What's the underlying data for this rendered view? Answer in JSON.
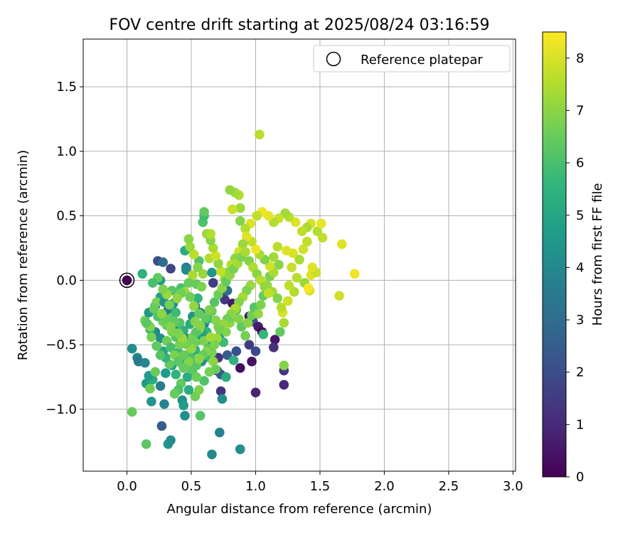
{
  "chart_data": {
    "type": "scatter",
    "title": "FOV centre drift starting at 2025/08/24 03:16:59",
    "xlabel": "Angular distance from reference (arcmin)",
    "ylabel": "Rotation from reference (arcmin)",
    "xlim": [
      -0.34,
      3.02
    ],
    "ylim": [
      -1.48,
      1.87
    ],
    "xticks": [
      0.0,
      0.5,
      1.0,
      1.5,
      2.0,
      2.5,
      3.0
    ],
    "xtick_labels": [
      "0.0",
      "0.5",
      "1.0",
      "1.5",
      "2.0",
      "2.5",
      "3.0"
    ],
    "yticks": [
      -1.0,
      -0.5,
      0.0,
      0.5,
      1.0,
      1.5
    ],
    "ytick_labels": [
      "−1.0",
      "−0.5",
      "0.0",
      "0.5",
      "1.0",
      "1.5"
    ],
    "grid": true,
    "legend": {
      "placement": "top-right",
      "entries": [
        "Reference platepar"
      ]
    },
    "reference_point": {
      "x": 0.0,
      "y": 0.0,
      "hours": 0.0
    },
    "colorbar": {
      "label": "Hours from first FF file",
      "range": [
        0,
        8.5
      ],
      "ticks": [
        0,
        1,
        2,
        3,
        4,
        5,
        6,
        7,
        8
      ],
      "tick_labels": [
        "0",
        "1",
        "2",
        "3",
        "4",
        "5",
        "6",
        "7",
        "8"
      ],
      "colormap": "viridis"
    },
    "points": [
      [
        0.0,
        0.0,
        0.1
      ],
      [
        0.12,
        0.05,
        5.4
      ],
      [
        0.24,
        0.15,
        2.0
      ],
      [
        0.28,
        0.14,
        3.0
      ],
      [
        0.34,
        0.09,
        1.7
      ],
      [
        0.45,
        0.23,
        5.2
      ],
      [
        0.46,
        0.1,
        3.6
      ],
      [
        0.46,
        0.08,
        4.0
      ],
      [
        0.26,
        0.0,
        4.6
      ],
      [
        0.24,
        0.02,
        6.4
      ],
      [
        0.2,
        -0.02,
        6.0
      ],
      [
        0.35,
        -0.08,
        6.2
      ],
      [
        0.42,
        -0.06,
        6.0
      ],
      [
        0.54,
        -0.03,
        6.5
      ],
      [
        0.58,
        -0.05,
        6.8
      ],
      [
        0.56,
        0.15,
        6.1
      ],
      [
        0.59,
        0.05,
        7.2
      ],
      [
        0.64,
        0.17,
        7.5
      ],
      [
        0.66,
        0.06,
        4.5
      ],
      [
        0.67,
        -0.02,
        1.6
      ],
      [
        0.72,
        -0.11,
        0.7
      ],
      [
        0.78,
        -0.08,
        3.0
      ],
      [
        0.76,
        -0.15,
        1.4
      ],
      [
        0.82,
        -0.18,
        0.6
      ],
      [
        0.95,
        -0.28,
        0.4
      ],
      [
        0.98,
        -0.32,
        2.3
      ],
      [
        1.02,
        -0.36,
        0.6
      ],
      [
        1.05,
        -0.4,
        0.2
      ],
      [
        1.06,
        -0.42,
        5.6
      ],
      [
        0.95,
        -0.5,
        1.5
      ],
      [
        0.85,
        -0.55,
        2.1
      ],
      [
        0.78,
        -0.58,
        2.5
      ],
      [
        0.71,
        -0.6,
        1.3
      ],
      [
        0.7,
        -0.7,
        0.8
      ],
      [
        0.73,
        -0.73,
        2.4
      ],
      [
        0.77,
        -0.75,
        5.2
      ],
      [
        0.73,
        -0.86,
        1.3
      ],
      [
        0.74,
        -0.92,
        4.2
      ],
      [
        0.72,
        -1.18,
        3.8
      ],
      [
        0.66,
        -1.35,
        4.0
      ],
      [
        0.88,
        -1.31,
        3.6
      ],
      [
        0.88,
        -1.31,
        4.3
      ],
      [
        0.83,
        -0.62,
        5.4
      ],
      [
        0.88,
        -0.68,
        0.3
      ],
      [
        0.97,
        -0.63,
        0.4
      ],
      [
        1.0,
        -0.87,
        0.9
      ],
      [
        1.0,
        -0.55,
        1.9
      ],
      [
        1.15,
        -0.46,
        0.5
      ],
      [
        1.14,
        -0.52,
        1.2
      ],
      [
        1.22,
        -0.7,
        1.3
      ],
      [
        1.22,
        -0.81,
        1.0
      ],
      [
        1.22,
        -0.66,
        6.9
      ],
      [
        1.19,
        -0.4,
        6.4
      ],
      [
        1.22,
        -0.33,
        7.4
      ],
      [
        1.21,
        -0.25,
        8.0
      ],
      [
        0.04,
        -0.53,
        4.1
      ],
      [
        0.08,
        -0.6,
        3.9
      ],
      [
        0.09,
        -0.63,
        3.4
      ],
      [
        0.14,
        -0.64,
        3.9
      ],
      [
        0.15,
        -0.8,
        4.7
      ],
      [
        0.2,
        -0.77,
        5.3
      ],
      [
        0.19,
        -0.94,
        4.4
      ],
      [
        0.17,
        -0.74,
        4.6
      ],
      [
        0.26,
        -0.82,
        3.6
      ],
      [
        0.29,
        -0.96,
        3.8
      ],
      [
        0.27,
        -1.13,
        2.5
      ],
      [
        0.15,
        -1.27,
        6.3
      ],
      [
        0.32,
        -1.27,
        4.4
      ],
      [
        0.34,
        -1.24,
        4.2
      ],
      [
        0.04,
        -1.02,
        6.5
      ],
      [
        0.18,
        -0.84,
        6.6
      ],
      [
        0.22,
        -0.71,
        6.5
      ],
      [
        0.3,
        -0.72,
        4.6
      ],
      [
        0.35,
        -0.66,
        4.9
      ],
      [
        0.38,
        -0.73,
        5.5
      ],
      [
        0.42,
        -0.8,
        6.4
      ],
      [
        0.43,
        -0.93,
        4.3
      ],
      [
        0.44,
        -0.97,
        4.7
      ],
      [
        0.45,
        -1.05,
        4.2
      ],
      [
        0.57,
        -1.05,
        6.2
      ],
      [
        0.53,
        -0.9,
        6.6
      ],
      [
        0.48,
        -0.85,
        5.2
      ],
      [
        0.4,
        -0.85,
        6.1
      ],
      [
        0.37,
        -0.88,
        6.5
      ],
      [
        0.33,
        -0.65,
        6.4
      ],
      [
        0.3,
        -0.6,
        5.6
      ],
      [
        0.28,
        -0.55,
        5.0
      ],
      [
        0.26,
        -0.45,
        4.2
      ],
      [
        0.22,
        -0.4,
        4.0
      ],
      [
        0.18,
        -0.38,
        5.6
      ],
      [
        0.16,
        -0.34,
        6.3
      ],
      [
        0.14,
        -0.31,
        6.7
      ],
      [
        0.17,
        -0.25,
        4.5
      ],
      [
        0.22,
        -0.2,
        3.9
      ],
      [
        0.26,
        -0.13,
        4.8
      ],
      [
        0.23,
        -0.17,
        6.8
      ],
      [
        0.29,
        -0.17,
        4.3
      ],
      [
        0.32,
        -0.23,
        3.6
      ],
      [
        0.35,
        -0.29,
        6.5
      ],
      [
        0.38,
        -0.25,
        5.8
      ],
      [
        0.36,
        -0.18,
        4.1
      ],
      [
        0.38,
        -0.37,
        4.5
      ],
      [
        0.41,
        -0.33,
        6.2
      ],
      [
        0.44,
        -0.39,
        5.4
      ],
      [
        0.46,
        -0.45,
        3.9
      ],
      [
        0.49,
        -0.34,
        5.2
      ],
      [
        0.51,
        -0.28,
        4.4
      ],
      [
        0.53,
        -0.2,
        3.5
      ],
      [
        0.55,
        -0.14,
        5.5
      ],
      [
        0.57,
        -0.25,
        4.1
      ],
      [
        0.6,
        -0.34,
        3.8
      ],
      [
        0.62,
        -0.4,
        5.5
      ],
      [
        0.64,
        -0.5,
        4.9
      ],
      [
        0.66,
        -0.56,
        6.7
      ],
      [
        0.61,
        -0.6,
        5.7
      ],
      [
        0.58,
        -0.63,
        4.2
      ],
      [
        0.54,
        -0.66,
        6.3
      ],
      [
        0.51,
        -0.72,
        5.9
      ],
      [
        0.47,
        -0.75,
        5.2
      ],
      [
        0.43,
        -0.65,
        4.9
      ],
      [
        0.4,
        -0.56,
        5.6
      ],
      [
        0.46,
        -0.58,
        6.4
      ],
      [
        0.5,
        -0.6,
        6.0
      ],
      [
        0.53,
        -0.54,
        5.4
      ],
      [
        0.56,
        -0.46,
        4.6
      ],
      [
        0.59,
        -0.42,
        4.8
      ],
      [
        0.63,
        -0.3,
        5.7
      ],
      [
        0.66,
        -0.24,
        6.5
      ],
      [
        0.69,
        -0.31,
        6.9
      ],
      [
        0.71,
        -0.36,
        6.8
      ],
      [
        0.73,
        -0.41,
        4.5
      ],
      [
        0.75,
        -0.48,
        5.8
      ],
      [
        0.77,
        -0.4,
        6.9
      ],
      [
        0.8,
        -0.33,
        7.1
      ],
      [
        0.82,
        -0.28,
        6.7
      ],
      [
        0.85,
        -0.23,
        6.3
      ],
      [
        0.87,
        -0.3,
        6.9
      ],
      [
        0.89,
        -0.36,
        6.4
      ],
      [
        0.92,
        -0.43,
        6.7
      ],
      [
        0.94,
        -0.33,
        7.0
      ],
      [
        0.97,
        -0.27,
        6.6
      ],
      [
        0.99,
        -0.21,
        6.2
      ],
      [
        1.02,
        -0.26,
        7.1
      ],
      [
        1.04,
        -0.19,
        6.8
      ],
      [
        1.06,
        -0.12,
        6.5
      ],
      [
        1.09,
        -0.04,
        7.2
      ],
      [
        1.11,
        0.03,
        6.8
      ],
      [
        1.14,
        0.06,
        7.4
      ],
      [
        1.18,
        0.12,
        7.0
      ],
      [
        1.13,
        -0.09,
        7.3
      ],
      [
        1.17,
        -0.14,
        6.9
      ],
      [
        1.2,
        -0.21,
        7.6
      ],
      [
        1.25,
        -0.16,
        7.9
      ],
      [
        1.3,
        -0.09,
        7.5
      ],
      [
        1.26,
        -0.04,
        7.7
      ],
      [
        1.32,
        0.02,
        7.6
      ],
      [
        1.28,
        0.1,
        7.8
      ],
      [
        1.34,
        0.16,
        7.4
      ],
      [
        1.37,
        0.24,
        7.9
      ],
      [
        1.4,
        0.3,
        7.7
      ],
      [
        1.38,
        -0.02,
        7.2
      ],
      [
        1.43,
        0.04,
        8.1
      ],
      [
        1.47,
        0.06,
        7.8
      ],
      [
        1.42,
        -0.08,
        8.0
      ],
      [
        1.44,
        0.1,
        8.1
      ],
      [
        1.52,
        0.33,
        7.7
      ],
      [
        1.48,
        0.38,
        7.5
      ],
      [
        1.51,
        0.44,
        8.2
      ],
      [
        1.43,
        0.44,
        8.0
      ],
      [
        1.4,
        0.41,
        7.4
      ],
      [
        1.36,
        0.38,
        7.7
      ],
      [
        1.31,
        0.45,
        8.1
      ],
      [
        1.26,
        0.49,
        7.6
      ],
      [
        1.23,
        0.52,
        7.3
      ],
      [
        1.18,
        0.48,
        7.8
      ],
      [
        1.14,
        0.45,
        7.5
      ],
      [
        1.1,
        0.5,
        8.2
      ],
      [
        1.05,
        0.53,
        8.3
      ],
      [
        1.01,
        0.5,
        7.7
      ],
      [
        0.96,
        0.44,
        8.1
      ],
      [
        0.92,
        0.4,
        7.5
      ],
      [
        0.88,
        0.46,
        6.9
      ],
      [
        0.88,
        0.56,
        7.2
      ],
      [
        0.87,
        0.66,
        7.5
      ],
      [
        0.84,
        0.68,
        7.3
      ],
      [
        0.8,
        0.7,
        7.1
      ],
      [
        0.82,
        0.55,
        7.8
      ],
      [
        1.03,
        1.13,
        7.6
      ],
      [
        1.67,
        0.28,
        8.1
      ],
      [
        1.77,
        0.05,
        8.3
      ],
      [
        1.65,
        -0.12,
        7.9
      ],
      [
        1.41,
        -0.06,
        8.4
      ],
      [
        1.29,
        0.21,
        8.0
      ],
      [
        1.24,
        0.23,
        8.1
      ],
      [
        1.17,
        0.26,
        7.6
      ],
      [
        1.14,
        0.18,
        7.3
      ],
      [
        1.11,
        0.11,
        7.9
      ],
      [
        1.07,
        0.16,
        6.8
      ],
      [
        1.03,
        0.2,
        7.4
      ],
      [
        1.0,
        0.24,
        8.3
      ],
      [
        0.97,
        0.3,
        7.7
      ],
      [
        0.93,
        0.34,
        8.1
      ],
      [
        0.9,
        0.28,
        7.2
      ],
      [
        0.87,
        0.22,
        7.9
      ],
      [
        0.84,
        0.17,
        7.0
      ],
      [
        0.81,
        0.12,
        7.6
      ],
      [
        0.78,
        0.06,
        6.8
      ],
      [
        0.76,
        0.01,
        7.3
      ],
      [
        0.73,
        0.07,
        7.7
      ],
      [
        0.71,
        0.13,
        7.1
      ],
      [
        0.69,
        0.19,
        7.9
      ],
      [
        0.67,
        0.25,
        7.4
      ],
      [
        0.65,
        0.31,
        6.9
      ],
      [
        0.62,
        0.36,
        7.2
      ],
      [
        0.59,
        0.45,
        6.1
      ],
      [
        0.6,
        0.5,
        5.8
      ],
      [
        0.6,
        0.53,
        6.4
      ],
      [
        0.65,
        0.36,
        7.5
      ],
      [
        0.52,
        0.2,
        7.6
      ],
      [
        0.49,
        0.26,
        7.2
      ],
      [
        0.48,
        0.32,
        7.0
      ],
      [
        0.55,
        0.1,
        6.9
      ],
      [
        0.51,
        0.04,
        7.4
      ],
      [
        0.48,
        -0.02,
        6.5
      ],
      [
        0.45,
        -0.09,
        7.2
      ],
      [
        0.49,
        -0.13,
        6.6
      ],
      [
        0.52,
        -0.2,
        7.1
      ],
      [
        0.56,
        -0.26,
        6.4
      ],
      [
        0.53,
        -0.32,
        6.9
      ],
      [
        0.56,
        -0.38,
        7.4
      ],
      [
        0.6,
        -0.47,
        6.8
      ],
      [
        0.63,
        -0.53,
        6.2
      ],
      [
        0.67,
        -0.63,
        7.0
      ],
      [
        0.69,
        -0.69,
        6.5
      ],
      [
        0.64,
        -0.71,
        6.7
      ],
      [
        0.6,
        -0.78,
        6.1
      ],
      [
        0.56,
        -0.85,
        6.8
      ],
      [
        0.54,
        -0.75,
        6.6
      ],
      [
        0.5,
        -0.69,
        6.3
      ],
      [
        0.48,
        -0.63,
        6.9
      ],
      [
        0.44,
        -0.58,
        6.5
      ],
      [
        0.41,
        -0.5,
        6.7
      ],
      [
        0.38,
        -0.44,
        6.2
      ],
      [
        0.35,
        -0.4,
        6.8
      ],
      [
        0.31,
        -0.35,
        6.4
      ],
      [
        0.28,
        -0.32,
        6.6
      ],
      [
        0.24,
        -0.28,
        6.1
      ],
      [
        0.21,
        -0.22,
        6.5
      ],
      [
        0.18,
        -0.36,
        6.9
      ],
      [
        0.15,
        -0.33,
        6.3
      ],
      [
        0.19,
        -0.44,
        6.7
      ],
      [
        0.23,
        -0.51,
        6.4
      ],
      [
        0.26,
        -0.58,
        6.2
      ],
      [
        0.31,
        -0.47,
        6.6
      ],
      [
        0.34,
        -0.52,
        6.0
      ],
      [
        0.37,
        -0.58,
        6.8
      ],
      [
        0.4,
        -0.63,
        6.3
      ],
      [
        0.44,
        -0.68,
        6.5
      ],
      [
        0.47,
        -0.5,
        6.1
      ],
      [
        0.51,
        -0.44,
        6.7
      ],
      [
        0.54,
        -0.4,
        6.3
      ],
      [
        0.57,
        -0.35,
        6.9
      ],
      [
        0.61,
        -0.29,
        6.4
      ],
      [
        0.64,
        -0.23,
        6.8
      ],
      [
        0.68,
        -0.17,
        6.2
      ],
      [
        0.71,
        -0.11,
        6.6
      ],
      [
        0.74,
        -0.06,
        7.0
      ],
      [
        0.77,
        -0.01,
        6.5
      ],
      [
        0.8,
        0.04,
        7.1
      ],
      [
        0.83,
        0.09,
        6.7
      ],
      [
        0.86,
        0.13,
        7.3
      ],
      [
        0.89,
        0.18,
        6.8
      ],
      [
        0.92,
        0.22,
        7.4
      ],
      [
        0.95,
        0.15,
        6.9
      ],
      [
        0.98,
        0.1,
        7.5
      ],
      [
        1.01,
        0.05,
        7.0
      ],
      [
        1.04,
        0.0,
        7.6
      ],
      [
        1.07,
        -0.05,
        7.1
      ],
      [
        1.1,
        -0.1,
        7.7
      ],
      [
        0.96,
        -0.04,
        7.2
      ],
      [
        0.93,
        -0.08,
        6.8
      ],
      [
        0.9,
        -0.13,
        7.3
      ],
      [
        0.87,
        -0.17,
        6.9
      ],
      [
        0.84,
        -0.22,
        7.4
      ],
      [
        0.81,
        -0.26,
        7.0
      ],
      [
        0.78,
        -0.3,
        6.6
      ],
      [
        0.75,
        -0.34,
        7.1
      ],
      [
        0.72,
        -0.38,
        6.7
      ],
      [
        0.7,
        -0.45,
        7.2
      ],
      [
        0.68,
        -0.5,
        6.8
      ],
      [
        0.65,
        -0.44,
        7.3
      ],
      [
        0.62,
        -0.55,
        6.9
      ],
      [
        0.59,
        -0.58,
        6.5
      ],
      [
        0.56,
        -0.61,
        7.0
      ],
      [
        0.53,
        -0.48,
        6.6
      ],
      [
        0.5,
        -0.53,
        7.1
      ],
      [
        0.46,
        -0.49,
        6.7
      ],
      [
        0.43,
        -0.45,
        7.2
      ],
      [
        0.4,
        -0.41,
        6.8
      ],
      [
        0.37,
        -0.32,
        6.4
      ],
      [
        0.34,
        -0.36,
        6.9
      ],
      [
        0.3,
        -0.3,
        6.5
      ],
      [
        0.27,
        -0.26,
        7.0
      ],
      [
        0.42,
        -0.1,
        6.6
      ],
      [
        0.39,
        -0.14,
        7.1
      ],
      [
        0.33,
        -0.19,
        6.7
      ],
      [
        0.31,
        -0.11,
        7.2
      ],
      [
        0.28,
        -0.07,
        6.8
      ]
    ]
  }
}
